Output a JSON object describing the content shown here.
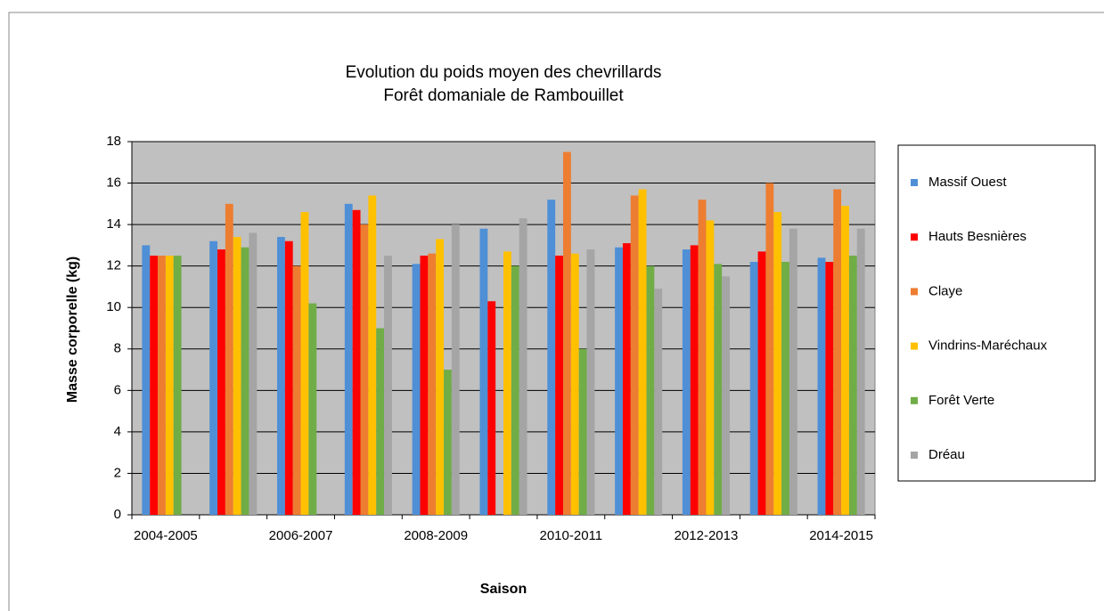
{
  "chart_data": {
    "type": "bar",
    "title": "Evolution du poids moyen des chevrillards",
    "subtitle": "Forêt domaniale de Rambouillet",
    "x_label": "Saison",
    "y_label": "Masse corporelle (kg)",
    "categories": [
      "2004-2005",
      null,
      "2006-2007",
      null,
      "2008-2009",
      null,
      "2010-2011",
      null,
      "2012-2013",
      null,
      "2014-2015"
    ],
    "series": [
      {
        "name": "Massif Ouest",
        "color": "#4f8fd6",
        "values": [
          13.0,
          13.2,
          13.4,
          15.0,
          12.1,
          13.8,
          15.2,
          12.9,
          12.8,
          12.2,
          12.4
        ]
      },
      {
        "name": "Hauts Besnières",
        "color": "#ff0000",
        "values": [
          12.5,
          12.8,
          13.2,
          14.7,
          12.5,
          10.3,
          12.5,
          13.1,
          13.0,
          12.7,
          12.2
        ]
      },
      {
        "name": "Claye",
        "color": "#ed7d31",
        "values": [
          12.5,
          15.0,
          12.0,
          14.0,
          12.6,
          null,
          17.5,
          15.4,
          15.2,
          16.0,
          15.7
        ]
      },
      {
        "name": "Vindrins-Maréchaux",
        "color": "#ffc000",
        "values": [
          12.5,
          13.4,
          14.6,
          15.4,
          13.3,
          12.7,
          12.6,
          15.7,
          14.2,
          14.6,
          14.9
        ]
      },
      {
        "name": "Forêt Verte",
        "color": "#70ad47",
        "values": [
          12.5,
          12.9,
          10.2,
          9.0,
          7.0,
          12.0,
          8.0,
          12.0,
          12.1,
          12.2,
          12.5
        ]
      },
      {
        "name": "Dréau",
        "color": "#a5a5a5",
        "values": [
          null,
          13.6,
          null,
          12.5,
          14.0,
          14.3,
          12.8,
          10.9,
          11.5,
          13.8,
          13.8
        ]
      }
    ],
    "ylim": [
      0,
      18
    ],
    "yticks": [
      0,
      2,
      4,
      6,
      8,
      10,
      12,
      14,
      16,
      18
    ],
    "grid": true,
    "legend": "right",
    "plot_background": "#c0c0c0"
  }
}
